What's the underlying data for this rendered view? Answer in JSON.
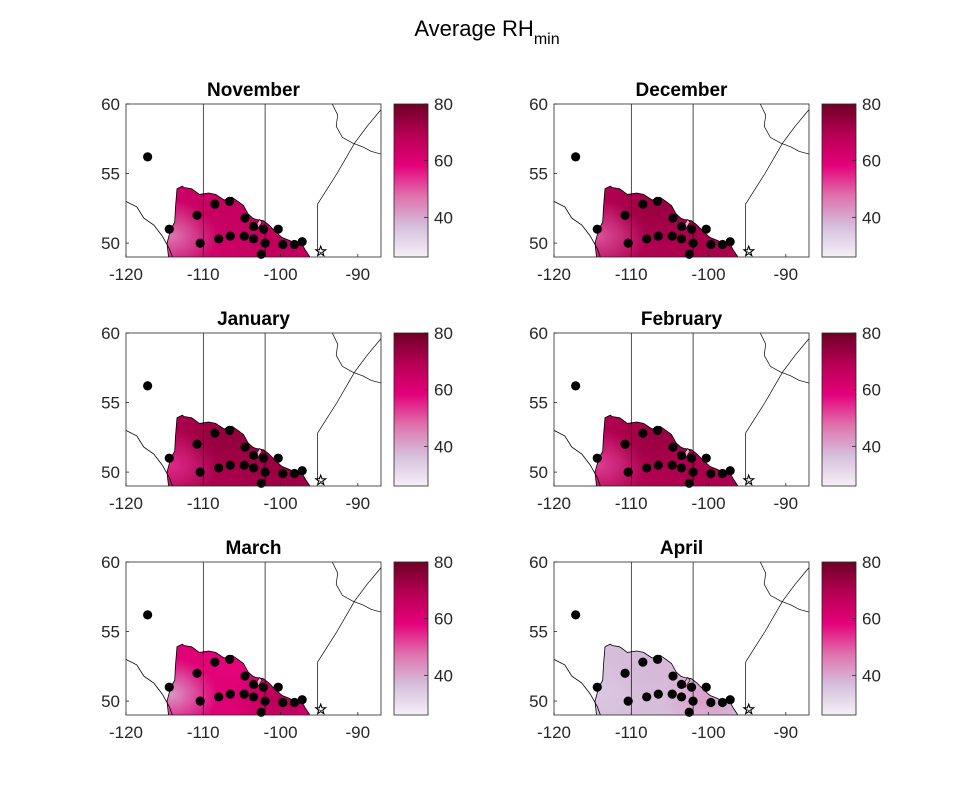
{
  "figure": {
    "title_main": "Average RH",
    "title_sub": "min"
  },
  "colors": {
    "colormap": [
      "#f5f0f7",
      "#d6bfdc",
      "#e070ad",
      "#e5007a",
      "#b50053",
      "#6e0026"
    ],
    "station_dot": "#000000",
    "boundary": "#000000"
  },
  "chart_data": [
    {
      "type": "heatmap",
      "title": "November",
      "xlim": [
        -120,
        -87
      ],
      "ylim": [
        49,
        60
      ],
      "xticks": [
        -120,
        -110,
        -100,
        -90
      ],
      "yticks": [
        50,
        55,
        60
      ],
      "colorbar": {
        "range": [
          26,
          80
        ],
        "ticks": [
          40,
          60,
          80
        ]
      },
      "field_level": 64,
      "field_variation": [
        [
          "west",
          45
        ],
        [
          "center",
          66
        ],
        [
          "southeast",
          68
        ]
      ],
      "stations": [
        [
          -117.2,
          56.2
        ],
        [
          -114.4,
          51.0
        ],
        [
          -110.8,
          52.0
        ],
        [
          -110.4,
          50.0
        ],
        [
          -108.5,
          52.8
        ],
        [
          -108.0,
          50.3
        ],
        [
          -106.6,
          53.0
        ],
        [
          -106.5,
          50.5
        ],
        [
          -104.7,
          50.5
        ],
        [
          -104.6,
          51.8
        ],
        [
          -103.5,
          50.3
        ],
        [
          -103.5,
          51.2
        ],
        [
          -102.5,
          49.2
        ],
        [
          -102.2,
          51.0
        ],
        [
          -102.0,
          50.0
        ],
        [
          -100.3,
          51.0
        ],
        [
          -99.7,
          49.9
        ],
        [
          -98.2,
          49.9
        ],
        [
          -97.2,
          50.1
        ]
      ]
    },
    {
      "type": "heatmap",
      "title": "December",
      "xlim": [
        -120,
        -87
      ],
      "ylim": [
        49,
        60
      ],
      "xticks": [
        -120,
        -110,
        -100,
        -90
      ],
      "yticks": [
        50,
        55,
        60
      ],
      "colorbar": {
        "range": [
          26,
          80
        ],
        "ticks": [
          40,
          60,
          80
        ]
      },
      "field_level": 70,
      "field_variation": [
        [
          "west",
          50
        ],
        [
          "center",
          74
        ],
        [
          "southeast",
          72
        ]
      ],
      "stations": [
        [
          -117.2,
          56.2
        ],
        [
          -114.4,
          51.0
        ],
        [
          -110.8,
          52.0
        ],
        [
          -110.4,
          50.0
        ],
        [
          -108.5,
          52.8
        ],
        [
          -108.0,
          50.3
        ],
        [
          -106.6,
          53.0
        ],
        [
          -106.5,
          50.5
        ],
        [
          -104.7,
          50.5
        ],
        [
          -104.6,
          51.8
        ],
        [
          -103.5,
          50.3
        ],
        [
          -103.5,
          51.2
        ],
        [
          -102.5,
          49.2
        ],
        [
          -102.2,
          51.0
        ],
        [
          -102.0,
          50.0
        ],
        [
          -100.3,
          51.0
        ],
        [
          -99.7,
          49.9
        ],
        [
          -98.2,
          49.9
        ],
        [
          -97.2,
          50.1
        ]
      ]
    },
    {
      "type": "heatmap",
      "title": "January",
      "xlim": [
        -120,
        -87
      ],
      "ylim": [
        49,
        60
      ],
      "xticks": [
        -120,
        -110,
        -100,
        -90
      ],
      "yticks": [
        50,
        55,
        60
      ],
      "colorbar": {
        "range": [
          26,
          80
        ],
        "ticks": [
          40,
          60,
          80
        ]
      },
      "field_level": 71,
      "field_variation": [
        [
          "west",
          54
        ],
        [
          "center",
          75
        ],
        [
          "southeast",
          74
        ]
      ],
      "stations": [
        [
          -117.2,
          56.2
        ],
        [
          -114.4,
          51.0
        ],
        [
          -110.8,
          52.0
        ],
        [
          -110.4,
          50.0
        ],
        [
          -108.5,
          52.8
        ],
        [
          -108.0,
          50.3
        ],
        [
          -106.6,
          53.0
        ],
        [
          -106.5,
          50.5
        ],
        [
          -104.7,
          50.5
        ],
        [
          -104.6,
          51.8
        ],
        [
          -103.5,
          50.3
        ],
        [
          -103.5,
          51.2
        ],
        [
          -102.5,
          49.2
        ],
        [
          -102.2,
          51.0
        ],
        [
          -102.0,
          50.0
        ],
        [
          -100.3,
          51.0
        ],
        [
          -99.7,
          49.9
        ],
        [
          -98.2,
          49.9
        ],
        [
          -97.2,
          50.1
        ]
      ]
    },
    {
      "type": "heatmap",
      "title": "February",
      "xlim": [
        -120,
        -87
      ],
      "ylim": [
        49,
        60
      ],
      "xticks": [
        -120,
        -110,
        -100,
        -90
      ],
      "yticks": [
        50,
        55,
        60
      ],
      "colorbar": {
        "range": [
          26,
          80
        ],
        "ticks": [
          40,
          60,
          80
        ]
      },
      "field_level": 70,
      "field_variation": [
        [
          "west",
          52
        ],
        [
          "center",
          74
        ],
        [
          "southeast",
          71
        ]
      ],
      "stations": [
        [
          -117.2,
          56.2
        ],
        [
          -114.4,
          51.0
        ],
        [
          -110.8,
          52.0
        ],
        [
          -110.4,
          50.0
        ],
        [
          -108.5,
          52.8
        ],
        [
          -108.0,
          50.3
        ],
        [
          -106.6,
          53.0
        ],
        [
          -106.5,
          50.5
        ],
        [
          -104.7,
          50.5
        ],
        [
          -104.6,
          51.8
        ],
        [
          -103.5,
          50.3
        ],
        [
          -103.5,
          51.2
        ],
        [
          -102.5,
          49.2
        ],
        [
          -102.2,
          51.0
        ],
        [
          -102.0,
          50.0
        ],
        [
          -100.3,
          51.0
        ],
        [
          -99.7,
          49.9
        ],
        [
          -98.2,
          49.9
        ],
        [
          -97.2,
          50.1
        ]
      ]
    },
    {
      "type": "heatmap",
      "title": "March",
      "xlim": [
        -120,
        -87
      ],
      "ylim": [
        49,
        60
      ],
      "xticks": [
        -120,
        -110,
        -100,
        -90
      ],
      "yticks": [
        50,
        55,
        60
      ],
      "colorbar": {
        "range": [
          26,
          80
        ],
        "ticks": [
          40,
          60,
          80
        ]
      },
      "field_level": 60,
      "field_variation": [
        [
          "west",
          40
        ],
        [
          "center",
          58
        ],
        [
          "southeast",
          70
        ]
      ],
      "stations": [
        [
          -117.2,
          56.2
        ],
        [
          -114.4,
          51.0
        ],
        [
          -110.8,
          52.0
        ],
        [
          -110.4,
          50.0
        ],
        [
          -108.5,
          52.8
        ],
        [
          -108.0,
          50.3
        ],
        [
          -106.6,
          53.0
        ],
        [
          -106.5,
          50.5
        ],
        [
          -104.7,
          50.5
        ],
        [
          -104.6,
          51.8
        ],
        [
          -103.5,
          50.3
        ],
        [
          -103.5,
          51.2
        ],
        [
          -102.5,
          49.2
        ],
        [
          -102.2,
          51.0
        ],
        [
          -102.0,
          50.0
        ],
        [
          -100.3,
          51.0
        ],
        [
          -99.7,
          49.9
        ],
        [
          -98.2,
          49.9
        ],
        [
          -97.2,
          50.1
        ]
      ]
    },
    {
      "type": "heatmap",
      "title": "April",
      "xlim": [
        -120,
        -87
      ],
      "ylim": [
        49,
        60
      ],
      "xticks": [
        -120,
        -110,
        -100,
        -90
      ],
      "yticks": [
        50,
        55,
        60
      ],
      "colorbar": {
        "range": [
          26,
          80
        ],
        "ticks": [
          40,
          60,
          80
        ]
      },
      "field_level": 37,
      "field_variation": [
        [
          "west",
          35
        ],
        [
          "center",
          38
        ],
        [
          "southeast",
          42
        ]
      ],
      "stations": [
        [
          -117.2,
          56.2
        ],
        [
          -114.4,
          51.0
        ],
        [
          -110.8,
          52.0
        ],
        [
          -110.4,
          50.0
        ],
        [
          -108.5,
          52.8
        ],
        [
          -108.0,
          50.3
        ],
        [
          -106.6,
          53.0
        ],
        [
          -106.5,
          50.5
        ],
        [
          -104.7,
          50.5
        ],
        [
          -104.6,
          51.8
        ],
        [
          -103.5,
          50.3
        ],
        [
          -103.5,
          51.2
        ],
        [
          -102.5,
          49.2
        ],
        [
          -102.2,
          51.0
        ],
        [
          -102.0,
          50.0
        ],
        [
          -100.3,
          51.0
        ],
        [
          -99.7,
          49.9
        ],
        [
          -98.2,
          49.9
        ],
        [
          -97.2,
          50.1
        ]
      ]
    }
  ]
}
